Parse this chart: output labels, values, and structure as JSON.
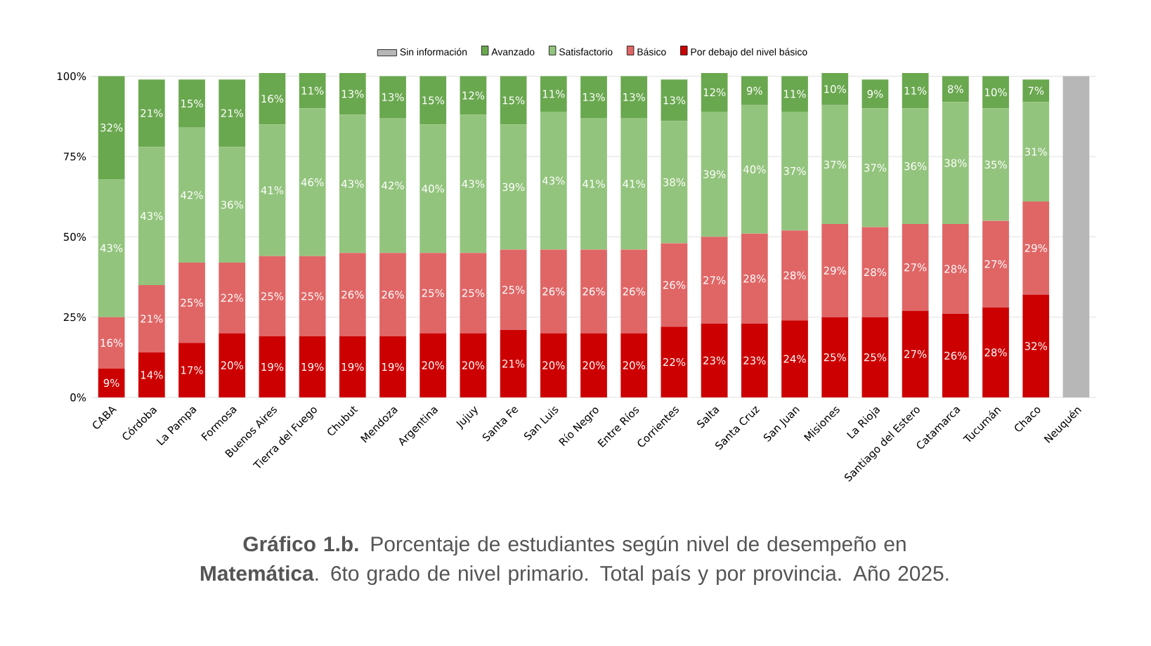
{
  "chart_data": {
    "type": "bar",
    "stacked": true,
    "title": "**Gráfico 1.b.** Porcentaje de estudiantes según nivel de desempeño en **Matemática**. 6to grado de nivel primario. Total país y por provincia. Año 2025.",
    "categories": [
      "CABA",
      "Córdoba",
      "La Pampa",
      "Formosa",
      "Buenos Aires",
      "Tierra del Fuego",
      "Chubut",
      "Mendoza",
      "Argentina",
      "Jujuy",
      "Santa Fe",
      "San Luis",
      "Río Negro",
      "Entre Ríos",
      "Corrientes",
      "Salta",
      "Santa Cruz",
      "San Juan",
      "Misiones",
      "La Rioja",
      "Santiago del Estero",
      "Catamarca",
      "Tucumán",
      "Chaco",
      "Neuquén"
    ],
    "series": [
      {
        "name": "Por debajo del nivel básico",
        "color": "#cc0000",
        "values": [
          9,
          14,
          17,
          20,
          19,
          19,
          19,
          19,
          20,
          20,
          21,
          20,
          20,
          20,
          22,
          23,
          23,
          24,
          25,
          25,
          27,
          26,
          28,
          32,
          null
        ],
        "value_labels": [
          "9%",
          "14%",
          "17%",
          "20%",
          "19%",
          "19%",
          "19%",
          "19%",
          "20%",
          "20%",
          "21%",
          "20%",
          "20%",
          "20%",
          "22%",
          "23%",
          "23%",
          "24%",
          "25%",
          "25%",
          "27%",
          "26%",
          "28%",
          "32%",
          null
        ]
      },
      {
        "name": "Básico",
        "color": "#e06666",
        "values": [
          16,
          21,
          25,
          22,
          25,
          25,
          26,
          26,
          25,
          25,
          25,
          26,
          26,
          26,
          26,
          27,
          28,
          28,
          29,
          28,
          27,
          28,
          27,
          29,
          null
        ],
        "value_labels": [
          "16%",
          "21%",
          "25%",
          "22%",
          "25%",
          "25%",
          "26%",
          "26%",
          "25%",
          "25%",
          "25%",
          "26%",
          "26%",
          "26%",
          "26%",
          "27%",
          "28%",
          "28%",
          "29%",
          "28%",
          "27%",
          "28%",
          "27%",
          "29%",
          null
        ]
      },
      {
        "name": "Satisfactorio",
        "color": "#93c47d",
        "values": [
          43,
          43,
          42,
          36,
          41,
          46,
          43,
          42,
          40,
          43,
          39,
          43,
          41,
          41,
          38,
          39,
          40,
          37,
          37,
          37,
          36,
          38,
          35,
          31,
          null
        ],
        "value_labels": [
          "43%",
          "43%",
          "42%",
          "36%",
          "41%",
          "46%",
          "43%",
          "42%",
          "40%",
          "43%",
          "39%",
          "43%",
          "41%",
          "41%",
          "38%",
          "39%",
          "40%",
          "37%",
          "37%",
          "37%",
          "36%",
          "38%",
          "35%",
          "31%",
          null
        ]
      },
      {
        "name": "Avanzado",
        "color": "#6aa84f",
        "values": [
          32,
          21,
          15,
          21,
          16,
          11,
          13,
          13,
          15,
          12,
          15,
          11,
          13,
          13,
          13,
          12,
          9,
          11,
          10,
          9,
          11,
          8,
          10,
          7,
          null
        ],
        "value_labels": [
          "32%",
          "21%",
          "15%",
          "21%",
          "16%",
          "11%",
          "13%",
          "13%",
          "15%",
          "12%",
          "15%",
          "11%",
          "13%",
          "13%",
          "13%",
          "12%",
          "9%",
          "11%",
          "10%",
          "9%",
          "11%",
          "8%",
          "10%",
          "7%",
          null
        ]
      },
      {
        "name": "Sin información",
        "color": "#b7b7b7",
        "values": [
          null,
          null,
          null,
          null,
          null,
          null,
          null,
          null,
          null,
          null,
          null,
          null,
          null,
          null,
          null,
          null,
          null,
          null,
          null,
          null,
          null,
          null,
          null,
          null,
          100
        ]
      }
    ],
    "ylim": [
      0,
      101
    ],
    "yticks": [
      {
        "value": 0,
        "label": "0%"
      },
      {
        "value": 25,
        "label": "25%"
      },
      {
        "value": 50,
        "label": "50%"
      },
      {
        "value": 75,
        "label": "75%"
      },
      {
        "value": 100,
        "label": "100%"
      }
    ],
    "grid": "y",
    "legend": "top"
  }
}
